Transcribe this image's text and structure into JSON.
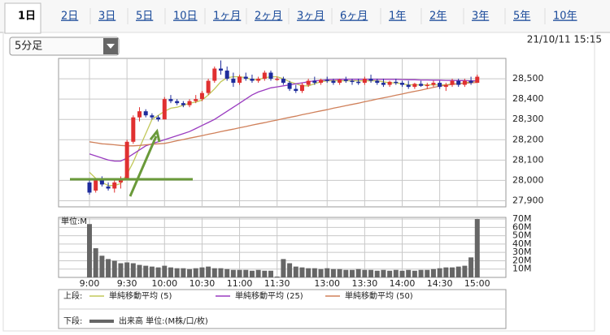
{
  "tabs": [
    {
      "label": "1日",
      "active": true
    },
    {
      "label": "2日"
    },
    {
      "label": "3日"
    },
    {
      "label": "5日"
    },
    {
      "label": "10日"
    },
    {
      "label": "1ヶ月"
    },
    {
      "label": "2ヶ月"
    },
    {
      "label": "3ヶ月"
    },
    {
      "label": "6ヶ月"
    },
    {
      "label": "1年"
    },
    {
      "label": "2年"
    },
    {
      "label": "3年"
    },
    {
      "label": "5年"
    },
    {
      "label": "10年"
    }
  ],
  "dropdown": "5分足",
  "timestamp": "21/10/11 15:15",
  "chart_data": {
    "type": "candlestick",
    "categories": [
      "9:00",
      null,
      null,
      null,
      null,
      null,
      "9:30",
      null,
      null,
      null,
      null,
      null,
      "10:00",
      null,
      null,
      null,
      null,
      null,
      "10:30",
      null,
      null,
      null,
      null,
      null,
      "11:00",
      null,
      null,
      null,
      null,
      null,
      "11:30",
      null,
      null,
      null,
      null,
      null,
      null,
      null,
      "13:00",
      null,
      null,
      null,
      null,
      null,
      "13:30",
      null,
      null,
      null,
      null,
      null,
      "14:00",
      null,
      null,
      null,
      null,
      null,
      "14:30",
      null,
      null,
      null,
      null,
      null,
      "15:00"
    ],
    "ohlc": [
      [
        27990,
        28000,
        27930,
        27940
      ],
      [
        27950,
        28010,
        27940,
        28000
      ],
      [
        28000,
        28020,
        27970,
        27980
      ],
      [
        27970,
        27990,
        27950,
        27960
      ],
      [
        27960,
        28000,
        27940,
        27990
      ],
      [
        27990,
        28020,
        27960,
        28010
      ],
      [
        28010,
        28200,
        28000,
        28190
      ],
      [
        28190,
        28320,
        28180,
        28310
      ],
      [
        28310,
        28360,
        28290,
        28340
      ],
      [
        28340,
        28350,
        28310,
        28320
      ],
      [
        28320,
        28330,
        28300,
        28310
      ],
      [
        28310,
        28320,
        28290,
        28300
      ],
      [
        28300,
        28410,
        28300,
        28400
      ],
      [
        28400,
        28420,
        28380,
        28390
      ],
      [
        28390,
        28400,
        28370,
        28380
      ],
      [
        28380,
        28390,
        28360,
        28370
      ],
      [
        28370,
        28400,
        28360,
        28390
      ],
      [
        28390,
        28420,
        28380,
        28400
      ],
      [
        28400,
        28440,
        28390,
        28430
      ],
      [
        28430,
        28500,
        28420,
        28490
      ],
      [
        28490,
        28560,
        28480,
        28550
      ],
      [
        28550,
        28590,
        28520,
        28540
      ],
      [
        28540,
        28560,
        28490,
        28500
      ],
      [
        28500,
        28530,
        28460,
        28480
      ],
      [
        28480,
        28520,
        28470,
        28510
      ],
      [
        28510,
        28530,
        28490,
        28500
      ],
      [
        28500,
        28520,
        28480,
        28490
      ],
      [
        28490,
        28510,
        28480,
        28500
      ],
      [
        28500,
        28540,
        28490,
        28530
      ],
      [
        28530,
        28540,
        28490,
        28500
      ],
      [
        28500,
        28510,
        28490,
        28500
      ],
      [
        28500,
        28510,
        28470,
        28480
      ],
      [
        28480,
        28490,
        28440,
        28450
      ],
      [
        28450,
        28470,
        28430,
        28440
      ],
      [
        28440,
        28480,
        28430,
        28470
      ],
      [
        28470,
        28500,
        28460,
        28490
      ],
      [
        28490,
        28510,
        28470,
        28480
      ],
      [
        28480,
        28500,
        28470,
        28495
      ],
      [
        28495,
        28510,
        28480,
        28490
      ],
      [
        28490,
        28500,
        28470,
        28480
      ],
      [
        28480,
        28500,
        28470,
        28495
      ],
      [
        28495,
        28510,
        28480,
        28490
      ],
      [
        28490,
        28500,
        28470,
        28485
      ],
      [
        28485,
        28500,
        28470,
        28480
      ],
      [
        28480,
        28510,
        28470,
        28500
      ],
      [
        28500,
        28520,
        28480,
        28490
      ],
      [
        28490,
        28500,
        28470,
        28480
      ],
      [
        28480,
        28500,
        28460,
        28470
      ],
      [
        28470,
        28490,
        28460,
        28485
      ],
      [
        28485,
        28500,
        28470,
        28480
      ],
      [
        28480,
        28490,
        28460,
        28470
      ],
      [
        28470,
        28490,
        28450,
        28460
      ],
      [
        28460,
        28480,
        28450,
        28475
      ],
      [
        28475,
        28490,
        28460,
        28465
      ],
      [
        28465,
        28480,
        28450,
        28470
      ],
      [
        28470,
        28490,
        28460,
        28480
      ],
      [
        28480,
        28490,
        28450,
        28460
      ],
      [
        28460,
        28480,
        28440,
        28470
      ],
      [
        28470,
        28500,
        28460,
        28490
      ],
      [
        28490,
        28500,
        28460,
        28470
      ],
      [
        28470,
        28500,
        28460,
        28490
      ],
      [
        28490,
        28510,
        28470,
        28480
      ],
      [
        28480,
        28520,
        28480,
        28510
      ]
    ],
    "up_color": "#e03030",
    "down_color": "#1e2c9c",
    "ylim": [
      27870,
      28600
    ],
    "yticks": [
      {
        "value": 27900,
        "label": "27,900"
      },
      {
        "value": 28000,
        "label": "28,000"
      },
      {
        "value": 28100,
        "label": "28,100"
      },
      {
        "value": 28200,
        "label": "28,200"
      },
      {
        "value": 28300,
        "label": "28,300"
      },
      {
        "value": 28400,
        "label": "28,400"
      },
      {
        "value": 28500,
        "label": "28,500"
      }
    ],
    "grid": true,
    "series": [
      {
        "name": "単純移動平均 (5)",
        "color": "#c2c85a",
        "values": [
          28040,
          28010,
          27990,
          27975,
          27975,
          27985,
          28030,
          28090,
          28160,
          28230,
          28300,
          28320,
          28340,
          28355,
          28360,
          28370,
          28380,
          28385,
          28395,
          28420,
          28450,
          28485,
          28505,
          28510,
          28510,
          28505,
          28495,
          28495,
          28505,
          28510,
          28510,
          28500,
          28485,
          28475,
          28465,
          28465,
          28475,
          28485,
          28490,
          28490,
          28490,
          28490,
          28490,
          28490,
          28490,
          28490,
          28490,
          28485,
          28480,
          28480,
          28475,
          28470,
          28470,
          28470,
          28470,
          28470,
          28470,
          28470,
          28475,
          28475,
          28480,
          28485,
          28490
        ]
      },
      {
        "name": "単純移動平均 (25)",
        "color": "#9a3cc0",
        "values": [
          28130,
          28120,
          28110,
          28100,
          28095,
          28095,
          28110,
          28130,
          28150,
          28170,
          28180,
          28190,
          28200,
          28210,
          28220,
          28230,
          28240,
          28255,
          28270,
          28285,
          28300,
          28320,
          28340,
          28360,
          28380,
          28400,
          28420,
          28435,
          28445,
          28455,
          28460,
          28465,
          28470,
          28475,
          28480,
          28485,
          28490,
          28492,
          28495,
          28496,
          28497,
          28497,
          28497,
          28497,
          28497,
          28497,
          28497,
          28497,
          28497,
          28497,
          28496,
          28495,
          28495,
          28494,
          28494,
          28493,
          28493,
          28492,
          28492,
          28491,
          28491,
          28490,
          28490
        ]
      },
      {
        "name": "単純移動平均 (50)",
        "color": "#d0805a",
        "values": [
          28190,
          28185,
          28180,
          28178,
          28175,
          28172,
          28170,
          28170,
          28172,
          28175,
          28178,
          28180,
          28182,
          28188,
          28195,
          28201,
          28208,
          28214,
          28220,
          28227,
          28233,
          28240,
          28246,
          28252,
          28259,
          28265,
          28272,
          28278,
          28284,
          28291,
          28297,
          28304,
          28310,
          28316,
          28323,
          28329,
          28336,
          28342,
          28348,
          28355,
          28361,
          28368,
          28374,
          28380,
          28387,
          28393,
          28400,
          28406,
          28412,
          28419,
          28425,
          28432,
          28438,
          28444,
          28451,
          28457,
          28464,
          28468,
          28472,
          28475,
          28478,
          28480,
          28482
        ]
      }
    ],
    "volume": {
      "unit_label": "単位:M",
      "name": "出来高 単位:(M株/口/枚)",
      "color": "#666666",
      "values": [
        64,
        35,
        26,
        22,
        20,
        17,
        18,
        17,
        15,
        14,
        13,
        12,
        14,
        12,
        11,
        11,
        10,
        11,
        12,
        13,
        11,
        11,
        10,
        9,
        9,
        9,
        8,
        9,
        8,
        8,
        1,
        22,
        17,
        13,
        12,
        11,
        11,
        10,
        11,
        10,
        10,
        9,
        9,
        10,
        9,
        9,
        8,
        9,
        8,
        9,
        8,
        9,
        8,
        9,
        9,
        10,
        11,
        12,
        12,
        13,
        14,
        24,
        70
      ],
      "ylim": [
        0,
        72
      ],
      "yticks": [
        {
          "value": 10,
          "label": "10M"
        },
        {
          "value": 20,
          "label": "20M"
        },
        {
          "value": 30,
          "label": "30M"
        },
        {
          "value": 40,
          "label": "40M"
        },
        {
          "value": 50,
          "label": "50M"
        },
        {
          "value": 60,
          "label": "60M"
        },
        {
          "value": 70,
          "label": "70M"
        }
      ]
    },
    "legend": {
      "upper": "上段:",
      "lower": "下段:"
    }
  }
}
